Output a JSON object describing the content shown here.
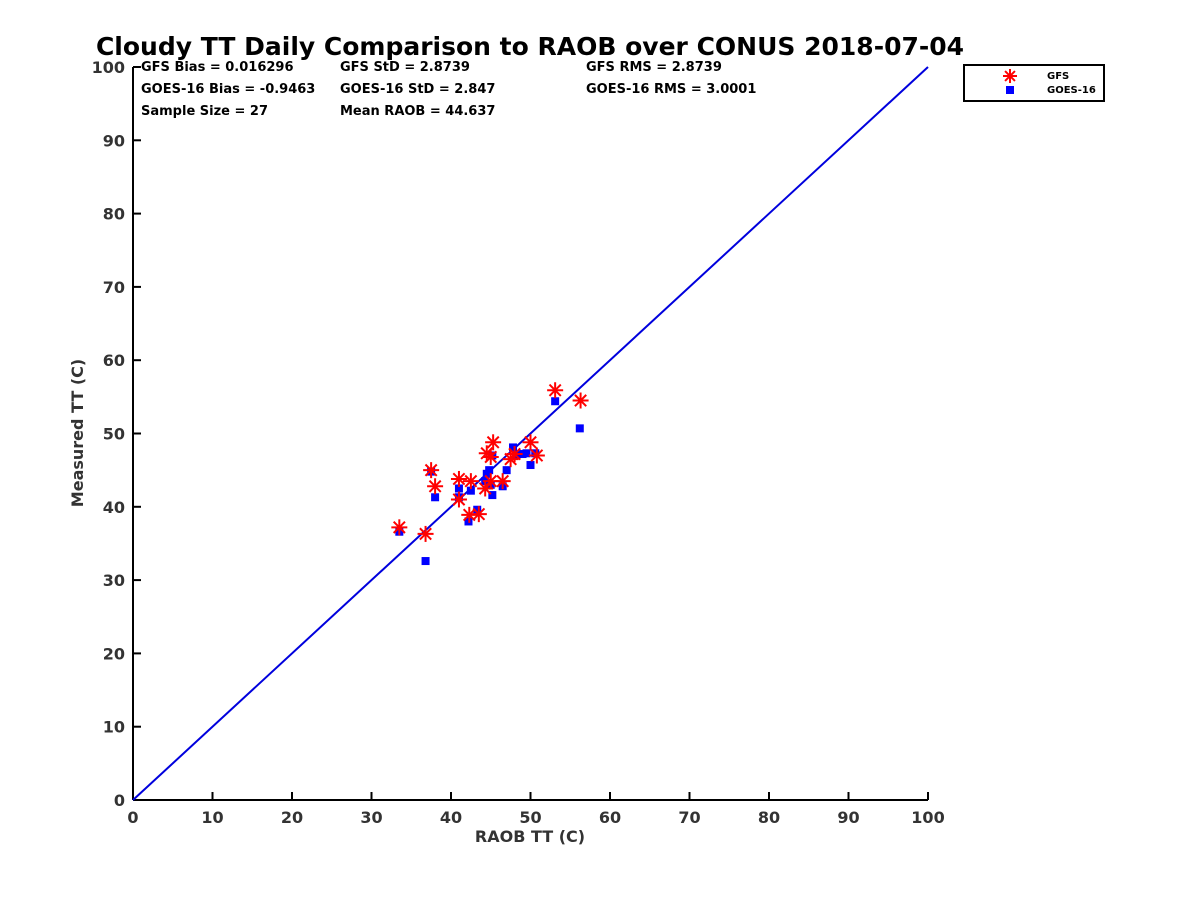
{
  "chart_data": {
    "type": "scatter",
    "title": "Cloudy TT Daily Comparison to RAOB over CONUS 2018-07-04",
    "xlabel": "RAOB TT (C)",
    "ylabel": "Measured TT (C)",
    "xlim": [
      0,
      100
    ],
    "ylim": [
      0,
      100
    ],
    "xticks": [
      "0",
      "10",
      "20",
      "30",
      "40",
      "50",
      "60",
      "70",
      "80",
      "90",
      "100"
    ],
    "yticks": [
      "0",
      "10",
      "20",
      "30",
      "40",
      "50",
      "60",
      "70",
      "80",
      "90",
      "100"
    ],
    "reference_line": {
      "x": [
        0,
        100
      ],
      "y": [
        0,
        100
      ],
      "color": "#0000dd"
    },
    "stats": {
      "gfs_bias": "GFS Bias = 0.016296",
      "gfs_std": "GFS StD = 2.8739",
      "gfs_rms": "GFS RMS = 2.8739",
      "goes_bias": "GOES-16 Bias = -0.9463",
      "goes_std": "GOES-16 StD = 2.847",
      "goes_rms": "GOES-16 RMS = 3.0001",
      "sample_size": "Sample Size = 27",
      "mean_raob": "Mean RAOB = 44.637"
    },
    "legend_position": "top-right outside",
    "series": [
      {
        "name": "GFS",
        "marker": "asterisk",
        "color": "#ff0000",
        "points": [
          [
            33.5,
            37.2
          ],
          [
            36.8,
            36.3
          ],
          [
            37.5,
            45.0
          ],
          [
            38.0,
            42.8
          ],
          [
            41.0,
            43.8
          ],
          [
            41.0,
            41.0
          ],
          [
            42.5,
            43.5
          ],
          [
            42.3,
            38.9
          ],
          [
            43.5,
            39.0
          ],
          [
            44.3,
            42.5
          ],
          [
            44.5,
            47.3
          ],
          [
            45.0,
            46.8
          ],
          [
            45.3,
            48.8
          ],
          [
            45.0,
            43.5
          ],
          [
            46.5,
            43.5
          ],
          [
            47.5,
            46.5
          ],
          [
            48.0,
            47.2
          ],
          [
            50.0,
            48.8
          ],
          [
            50.8,
            47.0
          ],
          [
            53.1,
            55.9
          ],
          [
            56.3,
            54.5
          ]
        ]
      },
      {
        "name": "GOES-16",
        "marker": "square",
        "color": "#0000ff",
        "points": [
          [
            33.5,
            36.6
          ],
          [
            36.8,
            32.6
          ],
          [
            37.5,
            44.8
          ],
          [
            38.0,
            41.3
          ],
          [
            41.0,
            42.5
          ],
          [
            41.0,
            41.3
          ],
          [
            42.2,
            38.0
          ],
          [
            42.5,
            42.2
          ],
          [
            43.3,
            39.6
          ],
          [
            44.3,
            43.5
          ],
          [
            44.5,
            44.5
          ],
          [
            44.8,
            45.0
          ],
          [
            45.0,
            43.0
          ],
          [
            45.2,
            41.6
          ],
          [
            45.2,
            47.0
          ],
          [
            46.5,
            42.8
          ],
          [
            47.0,
            45.0
          ],
          [
            47.8,
            48.1
          ],
          [
            48.2,
            47.0
          ],
          [
            49.0,
            47.2
          ],
          [
            49.5,
            47.3
          ],
          [
            50.0,
            45.7
          ],
          [
            50.6,
            47.3
          ],
          [
            53.1,
            54.4
          ],
          [
            56.2,
            50.7
          ]
        ]
      }
    ]
  }
}
